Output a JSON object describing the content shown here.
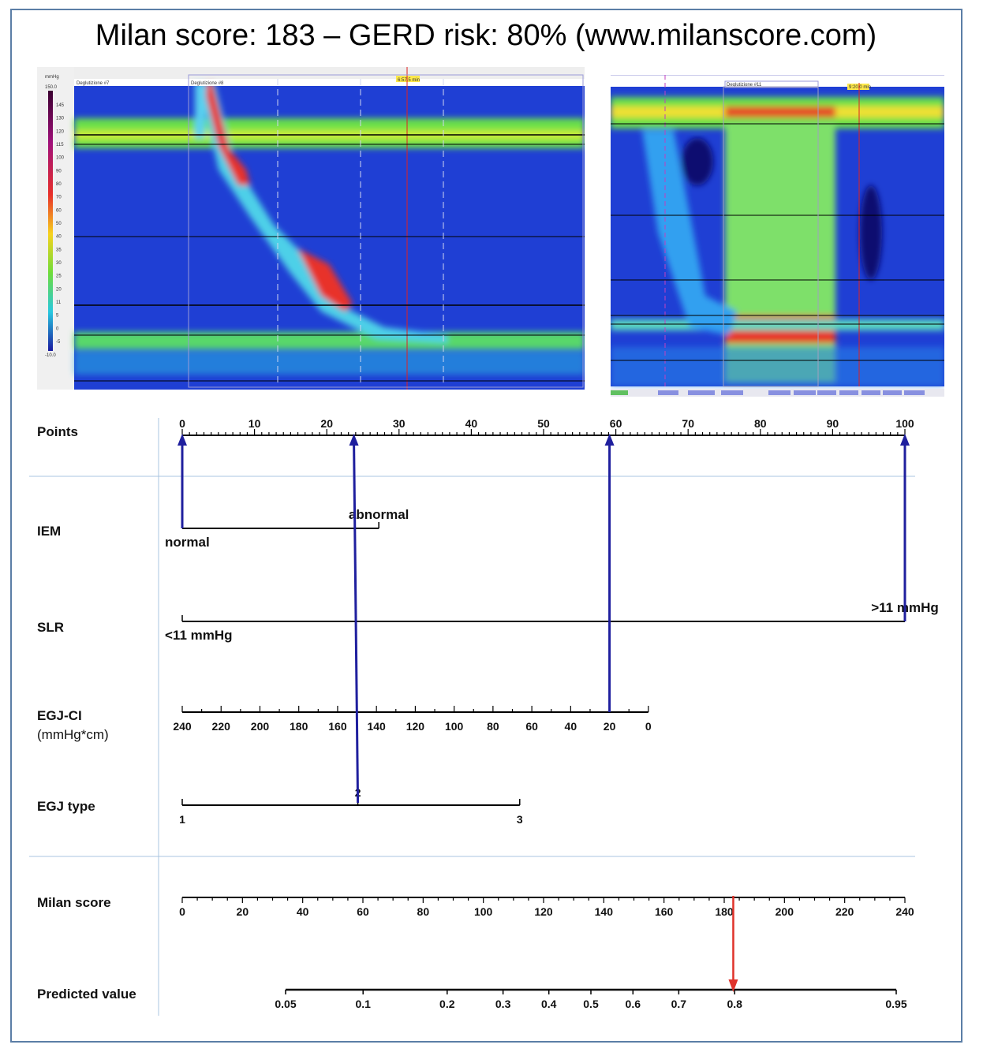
{
  "title": "Milan score: 183 – GERD risk: 80%  (www.milanscore.com)",
  "hrm_left": {
    "colorbar_unit": "mmHg",
    "colorbar_max": "150.0",
    "colorbar_ticks": [
      "145",
      "130",
      "120",
      "115",
      "100",
      "90",
      "80",
      "70",
      "60",
      "50",
      "40",
      "35",
      "30",
      "25",
      "20",
      "11",
      "5",
      "0",
      "-5"
    ],
    "colorbar_min": "-10.0",
    "swallow_label_a": "Deglutizione #7",
    "swallow_label_b": "Deglutizione #8",
    "time_marker": "6:57.5 min"
  },
  "hrm_right": {
    "swallow_label": "Deglutizione #11",
    "time_marker": "9:20.0 min"
  },
  "colors": {
    "arrow_blue": "#1f1f9e",
    "arrow_red": "#e0332b",
    "separator": "#a9c4e0",
    "frame": "#5b7ea6"
  },
  "chart_data": {
    "type": "nomogram",
    "title": "Milan score: 183 – GERD risk: 80%  (www.milanscore.com)",
    "axes": {
      "points": {
        "label": "Points",
        "min": 0,
        "max": 100,
        "major": 10,
        "minor": 1
      },
      "iem": {
        "label": "IEM",
        "levels": [
          {
            "label": "normal",
            "points": 0
          },
          {
            "label": "abnormal",
            "points": 27.2
          }
        ]
      },
      "slr": {
        "label": "SLR",
        "levels": [
          {
            "label": "<11 mmHg",
            "points": 0
          },
          {
            "label": ">11 mmHg",
            "points": 100
          }
        ]
      },
      "egjci": {
        "label": "EGJ-CI",
        "sublabel": "(mmHg*cm)",
        "from": 240,
        "to": 0,
        "step": 20,
        "points_at_from": 0,
        "points_at_to": 64.5
      },
      "egjtype": {
        "label": "EGJ type",
        "levels": [
          {
            "label": "1",
            "points": 0
          },
          {
            "label": "2",
            "points": 24.3
          },
          {
            "label": "3",
            "points": 46.7
          }
        ]
      },
      "milan": {
        "label": "Milan score",
        "min": 0,
        "max": 240,
        "major": 20,
        "minor": 5
      },
      "predicted": {
        "label": "Predicted value",
        "ticks": [
          "0.05",
          "0.1",
          "0.2",
          "0.3",
          "0.4",
          "0.5",
          "0.6",
          "0.7",
          "0.8",
          "0.95"
        ],
        "scale": "logit",
        "min": 0.05,
        "max": 0.95
      }
    },
    "selection": {
      "iem": "normal",
      "iem_points": 0,
      "slr": ">11 mmHg",
      "slr_points": 100,
      "egjci": 20,
      "egjci_points": 59,
      "egjtype": "2",
      "egjtype_points": 24.3,
      "total_score": 183,
      "predicted_value": 0.8
    }
  }
}
